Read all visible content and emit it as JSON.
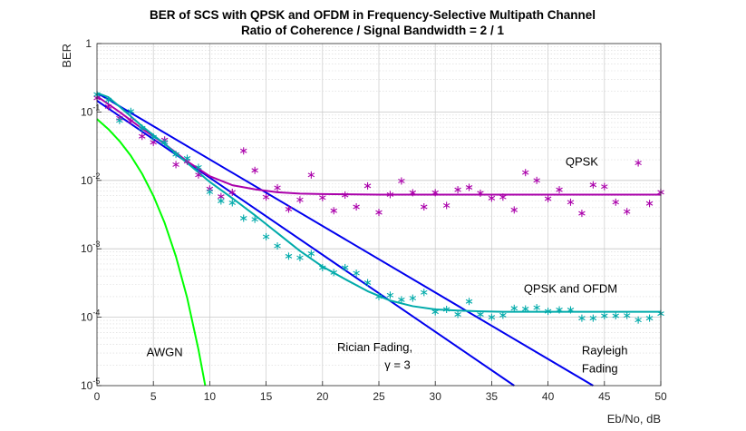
{
  "chart_data": {
    "type": "line",
    "title": "BER of SCS with QPSK and OFDM in Frequency-Selective Multipath Channel",
    "subtitle": "Ratio of Coherence / Signal Bandwidth = 2 / 1",
    "xlabel": "Eb/No, dB",
    "ylabel": "BER",
    "xlim": [
      0,
      50
    ],
    "ylim": [
      1e-05,
      1
    ],
    "yscale": "log",
    "grid": true,
    "x_ticks": [
      "0",
      "5",
      "10",
      "15",
      "20",
      "25",
      "30",
      "35",
      "40",
      "45",
      "50"
    ],
    "y_ticks": [
      {
        "value": 1,
        "label": "1",
        "sup": ""
      },
      {
        "value": 0.1,
        "label": "10",
        "sup": "-1"
      },
      {
        "value": 0.01,
        "label": "10",
        "sup": "-2"
      },
      {
        "value": 0.001,
        "label": "10",
        "sup": "-3"
      },
      {
        "value": 0.0001,
        "label": "10",
        "sup": "-4"
      },
      {
        "value": 1e-05,
        "label": "10",
        "sup": "-5"
      }
    ],
    "series": [
      {
        "color": "#00ff00",
        "style": "line",
        "x": [
          0,
          1,
          2,
          3,
          4,
          5,
          6,
          7,
          8,
          9,
          9.6
        ],
        "y": [
          0.0786,
          0.0563,
          0.0375,
          0.0229,
          0.0125,
          0.00595,
          0.00239,
          0.000773,
          0.000191,
          3.36e-05,
          1e-05
        ]
      },
      {
        "color": "#0000ee",
        "style": "line",
        "x": [
          0,
          37
        ],
        "y": [
          0.146,
          1e-05
        ]
      },
      {
        "color": "#0000ee",
        "style": "line",
        "x": [
          0,
          44
        ],
        "y": [
          0.19,
          1e-05
        ]
      },
      {
        "color": "#aa00aa",
        "style": "line",
        "x": [
          0,
          2,
          4,
          6,
          8,
          10,
          12,
          14,
          16,
          18,
          20,
          25,
          30,
          40,
          50
        ],
        "y": [
          0.17,
          0.1,
          0.057,
          0.034,
          0.019,
          0.0115,
          0.0085,
          0.0074,
          0.0067,
          0.0064,
          0.0063,
          0.0062,
          0.0062,
          0.0062,
          0.0062
        ]
      },
      {
        "color": "#00aaaa",
        "style": "line",
        "x": [
          0,
          1,
          2,
          4,
          6,
          8,
          10,
          12,
          14,
          16,
          18,
          20,
          22,
          24,
          26,
          28,
          30,
          32,
          34,
          36,
          40,
          50
        ],
        "y": [
          0.19,
          0.165,
          0.12,
          0.062,
          0.034,
          0.018,
          0.0095,
          0.0055,
          0.0031,
          0.0017,
          0.00093,
          0.00055,
          0.00036,
          0.00024,
          0.000175,
          0.000145,
          0.00013,
          0.000125,
          0.000122,
          0.00012,
          0.00012,
          0.00012
        ]
      },
      {
        "color": "#aa00aa",
        "style": "marker",
        "x": [
          0,
          1,
          2,
          3,
          4,
          5,
          6,
          7,
          8,
          9,
          10,
          11,
          12,
          13,
          14,
          15,
          16,
          17,
          18,
          19,
          20,
          21,
          22,
          23,
          24,
          25,
          26,
          27,
          28,
          29,
          30,
          31,
          32,
          33,
          34,
          35,
          36,
          37,
          38,
          39,
          40,
          41,
          42,
          43,
          44,
          45,
          46,
          47,
          48,
          49,
          50
        ],
        "y": [
          0.16,
          0.12,
          0.081,
          0.074,
          0.044,
          0.036,
          0.039,
          0.017,
          0.019,
          0.012,
          0.0075,
          0.0058,
          0.0067,
          0.027,
          0.014,
          0.0057,
          0.0078,
          0.0038,
          0.0052,
          0.012,
          0.0056,
          0.0036,
          0.0061,
          0.0041,
          0.0083,
          0.0034,
          0.0062,
          0.0098,
          0.0066,
          0.0041,
          0.0066,
          0.0043,
          0.0073,
          0.0079,
          0.0065,
          0.0055,
          0.0057,
          0.0037,
          0.013,
          0.01,
          0.0054,
          0.0073,
          0.0048,
          0.0033,
          0.0086,
          0.0081,
          0.0048,
          0.0035,
          0.018,
          0.0046,
          0.0067
        ]
      },
      {
        "color": "#00aaaa",
        "style": "marker",
        "x": [
          0,
          1,
          2,
          3,
          4,
          5,
          6,
          7,
          8,
          9,
          10,
          11,
          12,
          13,
          14,
          15,
          16,
          17,
          18,
          19,
          20,
          21,
          22,
          23,
          24,
          25,
          26,
          27,
          28,
          29,
          30,
          31,
          32,
          33,
          34,
          35,
          36,
          37,
          38,
          39,
          40,
          41,
          42,
          43,
          44,
          45,
          46,
          47,
          48,
          49,
          50
        ],
        "y": [
          0.18,
          0.15,
          0.075,
          0.102,
          0.058,
          0.043,
          0.036,
          0.024,
          0.021,
          0.0155,
          0.0068,
          0.005,
          0.0047,
          0.0028,
          0.0027,
          0.0015,
          0.0011,
          0.00078,
          0.00074,
          0.00085,
          0.00053,
          0.00045,
          0.00053,
          0.00044,
          0.00032,
          0.0002,
          0.00021,
          0.00018,
          0.00019,
          0.00023,
          0.00012,
          0.00013,
          0.00011,
          0.00017,
          0.00011,
          0.0001,
          0.000107,
          0.000135,
          0.000132,
          0.000138,
          0.000122,
          0.000128,
          0.000128,
          9.7e-05,
          9.7e-05,
          0.000105,
          0.000105,
          0.000106,
          9.1e-05,
          9.7e-05,
          0.000113
        ]
      }
    ],
    "annotations": [
      {
        "text": "QPSK",
        "x": 43,
        "y": 0.0165,
        "anchor": "middle",
        "sup": ""
      },
      {
        "text": "QPSK and OFDM",
        "x": 42,
        "y": 0.00023,
        "anchor": "middle",
        "sup": ""
      },
      {
        "text": "AWGN",
        "x": 6,
        "y": 2.7e-05,
        "anchor": "middle",
        "sup": ""
      },
      {
        "text": "Rician Fading,",
        "x": 21.3,
        "y": 3.2e-05,
        "anchor": "start",
        "sup": ""
      },
      {
        "text": "γ = 3",
        "x": 25.5,
        "y": 1.75e-05,
        "anchor": "start",
        "sup": ""
      },
      {
        "text": "Rayleigh",
        "x": 43,
        "y": 2.85e-05,
        "anchor": "start",
        "sup": ""
      },
      {
        "text": "Fading",
        "x": 43,
        "y": 1.55e-05,
        "anchor": "start",
        "sup": ""
      }
    ]
  }
}
